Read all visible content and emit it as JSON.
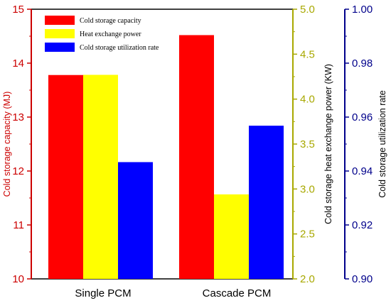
{
  "chart_data": {
    "type": "bar",
    "categories": [
      "Single PCM",
      "Cascade PCM"
    ],
    "series": [
      {
        "name": "Cold storage capacity",
        "values": [
          13.78,
          14.52
        ],
        "axis": "left",
        "color": "#ff0000"
      },
      {
        "name": "Heat exchange power",
        "values": [
          4.27,
          2.94
        ],
        "axis": "right1",
        "color": "#ffff00"
      },
      {
        "name": "Cold storage utilization rate",
        "values": [
          0.9433,
          0.9568
        ],
        "axis": "right2",
        "color": "#0000ff"
      }
    ],
    "axes": {
      "left": {
        "label": "Cold storage capacity (MJ)",
        "range": [
          10,
          15
        ],
        "ticks": [
          "10",
          "11",
          "12",
          "13",
          "14",
          "15"
        ],
        "color": "#cc0000"
      },
      "right1": {
        "label": "Cold storage heat exchange power (KW)",
        "range": [
          2.0,
          5.0
        ],
        "ticks": [
          "2.0",
          "2.5",
          "3.0",
          "3.5",
          "4.0",
          "4.5",
          "5.0"
        ],
        "color": "#a8a800"
      },
      "right2": {
        "label": "Cold storage utilization rate",
        "range": [
          0.9,
          1.0
        ],
        "ticks": [
          "0.90",
          "0.92",
          "0.94",
          "0.96",
          "0.98",
          "1.00"
        ],
        "color": "#00008b"
      }
    },
    "legend_position": "top-left",
    "grid": false
  }
}
